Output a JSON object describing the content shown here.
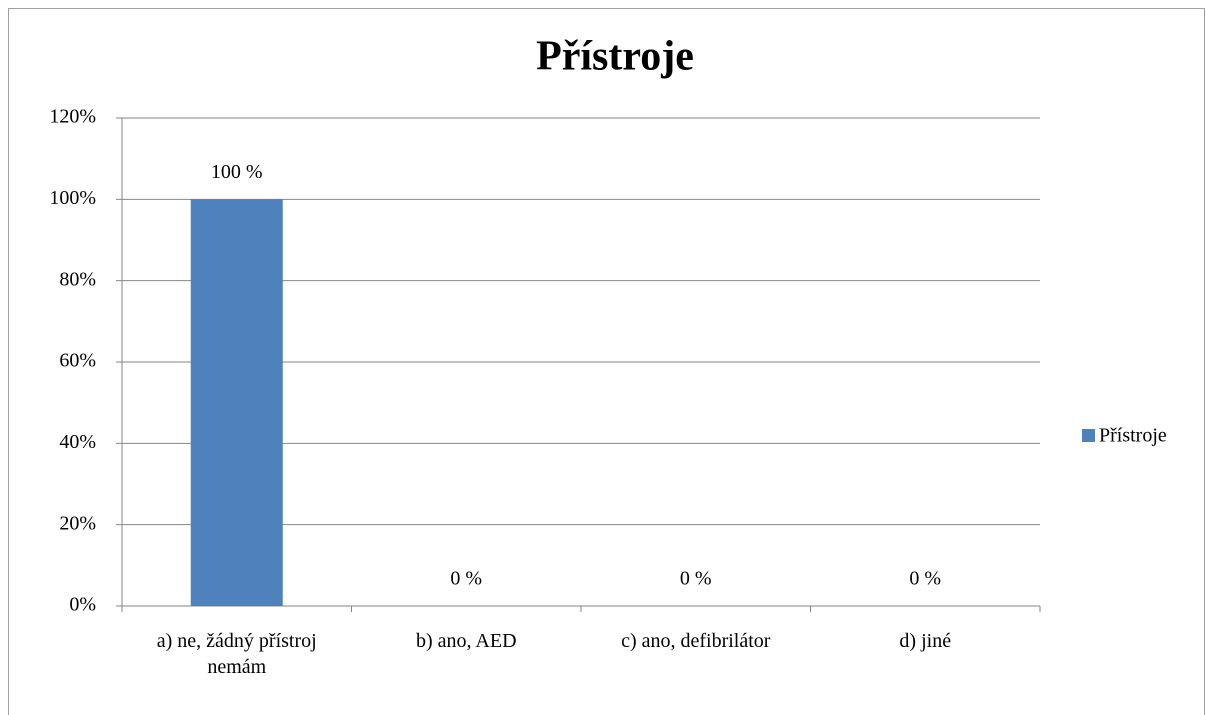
{
  "chart_data": {
    "type": "bar",
    "title": "Přístroje",
    "categories": [
      "a) ne, žádný přístroj nemám",
      "b) ano, AED",
      "c) ano, defibrilátor",
      "d) jiné"
    ],
    "series": [
      {
        "name": "Přístroje",
        "color": "#4f81bd",
        "values": [
          100,
          0,
          0,
          0
        ],
        "value_labels": [
          "100 %",
          "0 %",
          "0 %",
          "0 %"
        ]
      }
    ],
    "ylim": [
      0,
      120
    ],
    "yticks": [
      {
        "value": 0,
        "label": "0%"
      },
      {
        "value": 20,
        "label": "20%"
      },
      {
        "value": 40,
        "label": "40%"
      },
      {
        "value": 60,
        "label": "60%"
      },
      {
        "value": 80,
        "label": "80%"
      },
      {
        "value": 100,
        "label": "100%"
      },
      {
        "value": 120,
        "label": "120%"
      }
    ],
    "grid": true,
    "legend": "right"
  }
}
